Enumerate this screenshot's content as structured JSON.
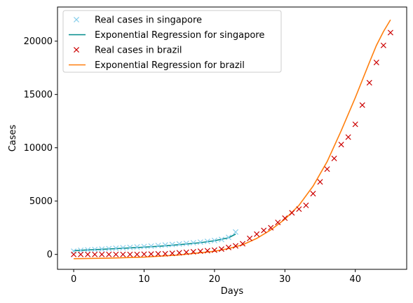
{
  "chart_data": {
    "type": "scatter",
    "title": "",
    "xlabel": "Days",
    "ylabel": "Cases",
    "xlim": [
      -2.3,
      47.3
    ],
    "ylim": [
      -1400,
      23200
    ],
    "xticks": [
      0,
      10,
      20,
      30,
      40
    ],
    "yticks": [
      0,
      5000,
      10000,
      15000,
      20000
    ],
    "grid": false,
    "legend_position": "top-left",
    "series": [
      {
        "name": "Real cases in singapore",
        "kind": "scatter",
        "marker": "x",
        "color": "#87ceeb",
        "x": [
          0,
          1,
          2,
          3,
          4,
          5,
          6,
          7,
          8,
          9,
          10,
          11,
          12,
          13,
          14,
          15,
          16,
          17,
          18,
          19,
          20,
          21,
          22,
          23
        ],
        "y": [
          300,
          380,
          420,
          460,
          500,
          540,
          580,
          620,
          660,
          700,
          740,
          780,
          830,
          880,
          930,
          980,
          1030,
          1090,
          1150,
          1220,
          1300,
          1400,
          1600,
          2100
        ]
      },
      {
        "name": "Exponential Regression for singapore",
        "kind": "line",
        "color": "#008b8b",
        "x": [
          0,
          2,
          4,
          6,
          8,
          10,
          12,
          14,
          16,
          18,
          20,
          22,
          23
        ],
        "y": [
          350,
          420,
          480,
          540,
          610,
          680,
          760,
          860,
          970,
          1100,
          1280,
          1560,
          1900
        ]
      },
      {
        "name": "Real cases in brazil",
        "kind": "scatter",
        "marker": "x",
        "color": "#cc0000",
        "x": [
          0,
          1,
          2,
          3,
          4,
          5,
          6,
          7,
          8,
          9,
          10,
          11,
          12,
          13,
          14,
          15,
          16,
          17,
          18,
          19,
          20,
          21,
          22,
          23,
          24,
          25,
          26,
          27,
          28,
          29,
          30,
          31,
          32,
          33,
          34,
          35,
          36,
          37,
          38,
          39,
          40,
          41,
          42,
          43,
          44,
          45
        ],
        "y": [
          0,
          0,
          0,
          0,
          0,
          0,
          0,
          0,
          0,
          0,
          20,
          30,
          50,
          60,
          100,
          150,
          200,
          250,
          300,
          350,
          400,
          500,
          650,
          800,
          1000,
          1500,
          1900,
          2250,
          2500,
          3000,
          3400,
          3900,
          4250,
          4600,
          5700,
          6800,
          8000,
          9000,
          10300,
          11000,
          12200,
          14000,
          16100,
          18000,
          19600,
          20800
        ]
      },
      {
        "name": "Exponential Regression for brazil",
        "kind": "line",
        "color": "#ff7f0e",
        "x": [
          0,
          5,
          10,
          15,
          20,
          22,
          24,
          26,
          28,
          30,
          32,
          34,
          36,
          38,
          40,
          42,
          43,
          44,
          45
        ],
        "y": [
          -400,
          -350,
          -250,
          -50,
          300,
          550,
          900,
          1500,
          2300,
          3300,
          4600,
          6400,
          8700,
          11600,
          14700,
          18000,
          19600,
          20900,
          22000
        ]
      }
    ]
  }
}
